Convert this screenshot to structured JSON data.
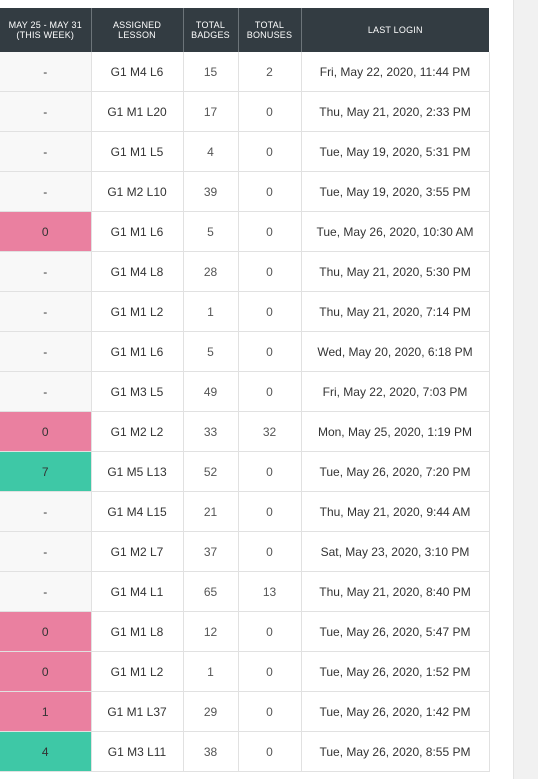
{
  "colors": {
    "header_bg": "#333c42",
    "pink_status": "#ea80a0",
    "green_status": "#3ec8a6",
    "row_divider": "#e1e1e1"
  },
  "header": {
    "week_line1": "MAY 25 - MAY 31",
    "week_line2": "(THIS WEEK)",
    "lesson_line1": "ASSIGNED",
    "lesson_line2": "LESSON",
    "badges_line1": "TOTAL",
    "badges_line2": "BADGES",
    "bonuses_line1": "TOTAL",
    "bonuses_line2": "BONUSES",
    "login": "LAST LOGIN"
  },
  "rows": [
    {
      "week": "-",
      "week_state": "none",
      "lesson": "G1 M4 L6",
      "badges": "15",
      "bonuses": "2",
      "login": "Fri, May 22, 2020, 11:44 PM"
    },
    {
      "week": "-",
      "week_state": "none",
      "lesson": "G1 M1 L20",
      "badges": "17",
      "bonuses": "0",
      "login": "Thu, May 21, 2020, 2:33 PM"
    },
    {
      "week": "-",
      "week_state": "none",
      "lesson": "G1 M1 L5",
      "badges": "4",
      "bonuses": "0",
      "login": "Tue, May 19, 2020, 5:31 PM"
    },
    {
      "week": "-",
      "week_state": "none",
      "lesson": "G1 M2 L10",
      "badges": "39",
      "bonuses": "0",
      "login": "Tue, May 19, 2020, 3:55 PM"
    },
    {
      "week": "0",
      "week_state": "pink",
      "lesson": "G1 M1 L6",
      "badges": "5",
      "bonuses": "0",
      "login": "Tue, May 26, 2020, 10:30 AM"
    },
    {
      "week": "-",
      "week_state": "none",
      "lesson": "G1 M4 L8",
      "badges": "28",
      "bonuses": "0",
      "login": "Thu, May 21, 2020, 5:30 PM"
    },
    {
      "week": "-",
      "week_state": "none",
      "lesson": "G1 M1 L2",
      "badges": "1",
      "bonuses": "0",
      "login": "Thu, May 21, 2020, 7:14 PM"
    },
    {
      "week": "-",
      "week_state": "none",
      "lesson": "G1 M1 L6",
      "badges": "5",
      "bonuses": "0",
      "login": "Wed, May 20, 2020, 6:18 PM"
    },
    {
      "week": "-",
      "week_state": "none",
      "lesson": "G1 M3 L5",
      "badges": "49",
      "bonuses": "0",
      "login": "Fri, May 22, 2020, 7:03 PM"
    },
    {
      "week": "0",
      "week_state": "pink",
      "lesson": "G1 M2 L2",
      "badges": "33",
      "bonuses": "32",
      "login": "Mon, May 25, 2020, 1:19 PM"
    },
    {
      "week": "7",
      "week_state": "green",
      "lesson": "G1 M5 L13",
      "badges": "52",
      "bonuses": "0",
      "login": "Tue, May 26, 2020, 7:20 PM"
    },
    {
      "week": "-",
      "week_state": "none",
      "lesson": "G1 M4 L15",
      "badges": "21",
      "bonuses": "0",
      "login": "Thu, May 21, 2020, 9:44 AM"
    },
    {
      "week": "-",
      "week_state": "none",
      "lesson": "G1 M2 L7",
      "badges": "37",
      "bonuses": "0",
      "login": "Sat, May 23, 2020, 3:10 PM"
    },
    {
      "week": "-",
      "week_state": "none",
      "lesson": "G1 M4 L1",
      "badges": "65",
      "bonuses": "13",
      "login": "Thu, May 21, 2020, 8:40 PM"
    },
    {
      "week": "0",
      "week_state": "pink",
      "lesson": "G1 M1 L8",
      "badges": "12",
      "bonuses": "0",
      "login": "Tue, May 26, 2020, 5:47 PM"
    },
    {
      "week": "0",
      "week_state": "pink",
      "lesson": "G1 M1 L2",
      "badges": "1",
      "bonuses": "0",
      "login": "Tue, May 26, 2020, 1:52 PM"
    },
    {
      "week": "1",
      "week_state": "pink",
      "lesson": "G1 M1 L37",
      "badges": "29",
      "bonuses": "0",
      "login": "Tue, May 26, 2020, 1:42 PM"
    },
    {
      "week": "4",
      "week_state": "green",
      "lesson": "G1 M3 L11",
      "badges": "38",
      "bonuses": "0",
      "login": "Tue, May 26, 2020, 8:55 PM"
    }
  ]
}
